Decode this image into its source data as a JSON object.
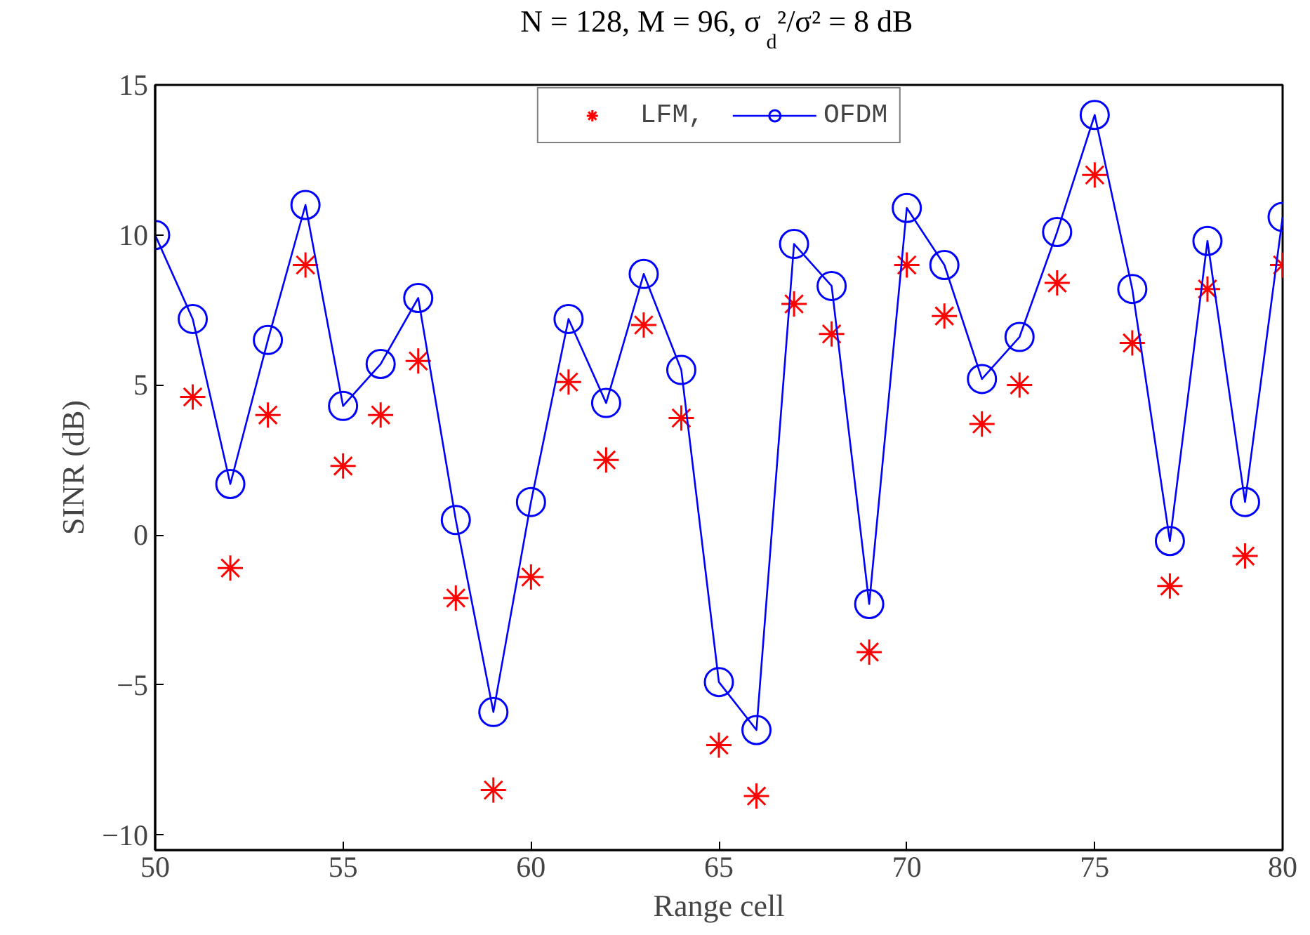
{
  "chart_data": {
    "type": "line",
    "title": "N = 128, M = 96, σ$_{d}$²/σ² = 8 dB",
    "xlabel": "Range cell",
    "ylabel": "SINR (dB)",
    "x": [
      50,
      51,
      52,
      53,
      54,
      55,
      56,
      57,
      58,
      59,
      60,
      61,
      62,
      63,
      64,
      65,
      66,
      67,
      68,
      69,
      70,
      71,
      72,
      73,
      74,
      75,
      76,
      77,
      78,
      79,
      80
    ],
    "series": [
      {
        "name": "LFM,",
        "type": "scatter",
        "marker": "cross",
        "color": "#ff0000",
        "values": [
          null,
          4.6,
          -1.1,
          4.0,
          9.0,
          2.3,
          4.0,
          5.8,
          -2.1,
          -8.5,
          -1.4,
          5.1,
          2.5,
          7.0,
          3.9,
          -7.0,
          -8.7,
          7.7,
          6.7,
          -3.9,
          9.0,
          7.3,
          3.7,
          5.0,
          8.4,
          12.0,
          6.4,
          -1.7,
          8.2,
          -0.7,
          9.0
        ]
      },
      {
        "name": "OFDM",
        "marker": "circle",
        "line_style": "solid",
        "color": "#0000ff",
        "values": [
          10.0,
          7.2,
          1.7,
          6.5,
          11.0,
          4.3,
          5.7,
          7.9,
          0.5,
          -5.9,
          1.1,
          7.2,
          4.4,
          8.7,
          5.5,
          -4.9,
          -6.5,
          9.7,
          8.3,
          -2.3,
          10.9,
          9.0,
          5.2,
          6.6,
          10.1,
          14.0,
          8.2,
          -0.2,
          9.8,
          1.1,
          10.6
        ]
      }
    ],
    "xlim": [
      50,
      80
    ],
    "xticks": [
      50,
      55,
      60,
      65,
      70,
      75,
      80
    ],
    "ylim": [
      -10.5,
      15
    ],
    "yticks": [
      -10,
      -5,
      0,
      5,
      10,
      15
    ],
    "grid": false,
    "legend": "top"
  }
}
